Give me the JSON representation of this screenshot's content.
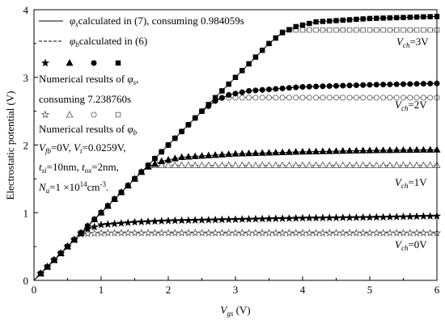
{
  "chart_data": {
    "type": "line",
    "xlabel": "V_gs (V)",
    "ylabel": "Electrostatic potential (V)",
    "xlim": [
      0,
      6
    ],
    "ylim": [
      0,
      4
    ],
    "x_ticks": [
      "0",
      "1",
      "2",
      "3",
      "4",
      "5",
      "6"
    ],
    "y_ticks": [
      "0",
      "1",
      "2",
      "3",
      "4"
    ],
    "grid": false,
    "legend_placement": "top-left",
    "legend": {
      "phi_s_line": "calculated in (7), consuming 0.984059s",
      "phi_b_line": "calculated in (6)",
      "num_phi_s": "Numerical results of φs,",
      "num_phi_s_2": "consuming 7.238760s",
      "num_phi_b": "Numerical results of φb",
      "params_1": "Vfb=0V, Vt=0.0259V,",
      "params_2": "tsi=10nm, tox=2nm,",
      "params_3": "Na=1×10^14 cm^-3."
    },
    "curve_labels": [
      "Vch=3V",
      "Vch=2V",
      "Vch=1V",
      "Vch=0V"
    ],
    "series": [
      {
        "name": "φs (Vch=0V)",
        "style": "solid",
        "marker": "star-filled",
        "x": [
          0,
          0.5,
          0.6,
          0.7,
          0.8,
          1,
          1.5,
          2,
          3,
          4,
          5,
          6
        ],
        "y": [
          0,
          0.5,
          0.6,
          0.7,
          0.76,
          0.82,
          0.86,
          0.88,
          0.9,
          0.92,
          0.93,
          0.95
        ]
      },
      {
        "name": "φb (Vch=0V)",
        "style": "dashed",
        "marker": "star-open",
        "x": [
          0,
          0.5,
          0.6,
          0.7,
          0.8,
          1,
          2,
          3,
          4,
          5,
          6
        ],
        "y": [
          0,
          0.5,
          0.6,
          0.68,
          0.69,
          0.7,
          0.7,
          0.7,
          0.7,
          0.7,
          0.7
        ]
      },
      {
        "name": "φs (Vch=1V)",
        "style": "solid",
        "marker": "triangle-filled",
        "x": [
          0,
          1,
          1.5,
          1.6,
          1.7,
          1.9,
          2.2,
          3,
          4,
          5,
          6
        ],
        "y": [
          0,
          1,
          1.5,
          1.6,
          1.68,
          1.76,
          1.82,
          1.87,
          1.9,
          1.92,
          1.93
        ]
      },
      {
        "name": "φb (Vch=1V)",
        "style": "dashed",
        "marker": "triangle-open",
        "x": [
          0,
          1,
          1.5,
          1.6,
          1.7,
          1.8,
          2,
          3,
          4,
          5,
          6
        ],
        "y": [
          0,
          1,
          1.5,
          1.6,
          1.68,
          1.7,
          1.7,
          1.7,
          1.7,
          1.7,
          1.7
        ]
      },
      {
        "name": "φs (Vch=2V)",
        "style": "solid",
        "marker": "circle-filled",
        "x": [
          0,
          1,
          2,
          2.5,
          2.7,
          2.9,
          3.2,
          4,
          5,
          6
        ],
        "y": [
          0,
          1,
          2,
          2.5,
          2.65,
          2.74,
          2.8,
          2.86,
          2.89,
          2.91
        ]
      },
      {
        "name": "φb (Vch=2V)",
        "style": "dashed",
        "marker": "circle-open",
        "x": [
          0,
          1,
          2,
          2.5,
          2.7,
          2.8,
          3,
          4,
          5,
          6
        ],
        "y": [
          0,
          1,
          2,
          2.5,
          2.67,
          2.7,
          2.7,
          2.7,
          2.7,
          2.7
        ]
      },
      {
        "name": "φs (Vch=3V)",
        "style": "solid",
        "marker": "square-filled",
        "x": [
          0,
          1,
          2,
          3,
          3.5,
          3.7,
          3.9,
          4.2,
          5,
          6
        ],
        "y": [
          0,
          1,
          2,
          3,
          3.5,
          3.66,
          3.75,
          3.82,
          3.87,
          3.9
        ]
      },
      {
        "name": "φb (Vch=3V)",
        "style": "dashed",
        "marker": "square-open",
        "x": [
          0,
          1,
          2,
          3,
          3.5,
          3.7,
          3.8,
          4,
          5,
          6
        ],
        "y": [
          0,
          1,
          2,
          3,
          3.5,
          3.67,
          3.7,
          3.7,
          3.7,
          3.7
        ]
      }
    ]
  }
}
